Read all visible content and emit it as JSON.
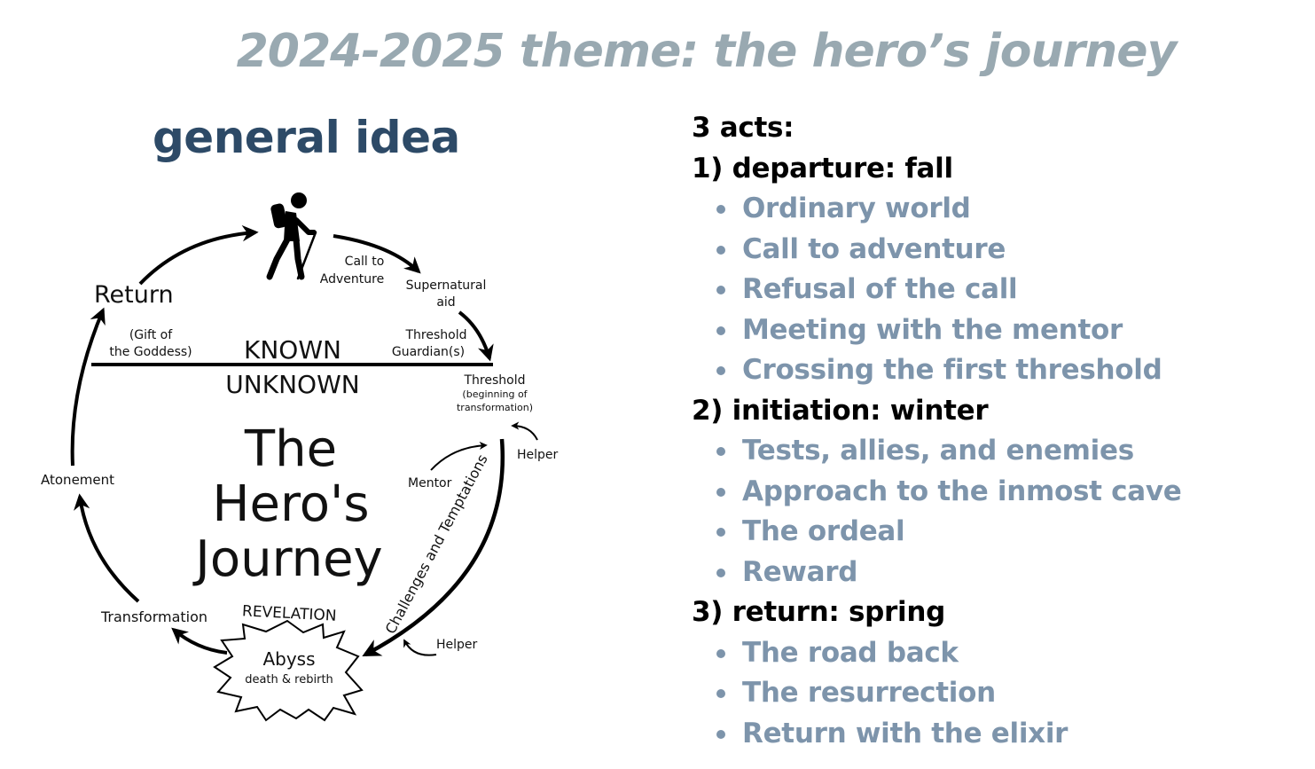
{
  "slide": {
    "title": "2024-2025 theme: the hero’s journey",
    "subtitle": "general idea"
  },
  "diagram": {
    "title_lines": [
      "The",
      "Hero's",
      "Journey"
    ],
    "known": "KNOWN",
    "unknown": "UNKNOWN",
    "return": "Return",
    "gift_lines": [
      "(Gift of",
      "the Goddess)"
    ],
    "call_lines": [
      "Call to",
      "Adventure"
    ],
    "supernatural_lines": [
      "Supernatural",
      "aid"
    ],
    "guardians_lines": [
      "Threshold",
      "Guardian(s)"
    ],
    "threshold": "Threshold",
    "threshold_sub_lines": [
      "(beginning of",
      "transformation)"
    ],
    "helper_top": "Helper",
    "mentor": "Mentor",
    "challenges": "Challenges and Temptations",
    "atonement": "Atonement",
    "transformation": "Transformation",
    "revelation": "REVELATION",
    "abyss": "Abyss",
    "abyss_sub": "death & rebirth",
    "helper_bottom": "Helper",
    "hiker_icon": "hiker-icon",
    "colors": {
      "line": "#000000",
      "title": "#99a9b1",
      "subtitle": "#2d4a67",
      "step": "#7d94ab"
    }
  },
  "acts": {
    "heading": "3 acts:",
    "list": [
      {
        "heading": "1) departure: fall",
        "steps": [
          "Ordinary world",
          "Call to adventure",
          "Refusal of the call",
          "Meeting with the mentor",
          "Crossing the first threshold"
        ]
      },
      {
        "heading": "2) initiation: winter",
        "steps": [
          "Tests, allies, and enemies",
          "Approach to the inmost cave",
          "The ordeal",
          "Reward"
        ]
      },
      {
        "heading": "3) return: spring",
        "steps": [
          "The road back",
          "The resurrection",
          "Return with the elixir"
        ]
      }
    ]
  }
}
